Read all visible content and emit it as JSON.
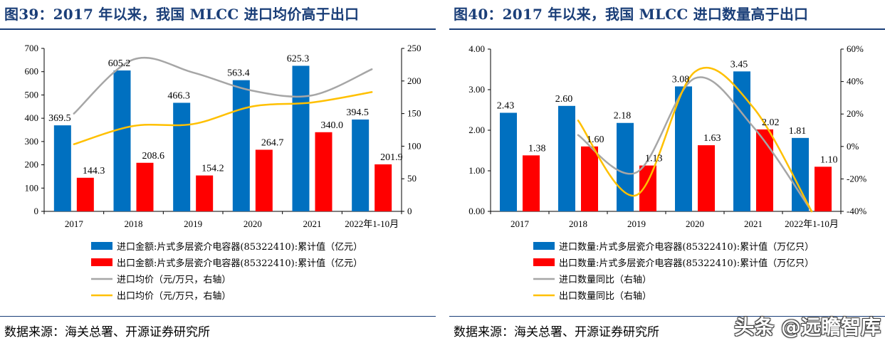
{
  "left": {
    "title": "图39：2017 年以来，我国 MLCC 进口均价高于出口",
    "source": "数据来源：海关总署、开源证券研究所",
    "chart_data": {
      "type": "bar",
      "categories": [
        "2017",
        "2018",
        "2019",
        "2020",
        "2021",
        "2022年1-10月"
      ],
      "y_left": {
        "ticks": [
          "0",
          "100",
          "200",
          "300",
          "400",
          "500",
          "600",
          "700"
        ],
        "lim": [
          0,
          700
        ]
      },
      "y_right": {
        "ticks": [
          "0",
          "50",
          "100",
          "150",
          "200",
          "250"
        ],
        "lim": [
          0,
          250
        ]
      },
      "series": [
        {
          "name": "进口金额:片式多层瓷介电容器(85322410):累计值（亿元）",
          "kind": "bar",
          "color": "#0070c0",
          "values": [
            369.5,
            605.2,
            466.3,
            563.4,
            625.3,
            394.5
          ],
          "labels": [
            "369.5",
            "605.2",
            "466.3",
            "563.4",
            "625.3",
            "394.5"
          ]
        },
        {
          "name": "出口金额:片式多层瓷介电容器(85322410):累计值（亿元）",
          "kind": "bar",
          "color": "#ff0000",
          "values": [
            144.3,
            208.6,
            154.2,
            264.7,
            340.0,
            201.9
          ],
          "labels": [
            "144.3",
            "208.6",
            "154.2",
            "264.7",
            "340.0",
            "201.9"
          ]
        },
        {
          "name": "进口均价（元/万只，右轴）",
          "kind": "line",
          "axis": "right",
          "color": "#a6a6a6",
          "values": [
            150,
            233,
            213,
            185,
            178,
            218
          ]
        },
        {
          "name": "出口均价（元/万只，右轴）",
          "kind": "line",
          "axis": "right",
          "color": "#ffc000",
          "values": [
            103,
            131,
            134,
            161,
            167,
            183
          ]
        }
      ]
    }
  },
  "right": {
    "title": "图40：2017 年以来，我国 MLCC 进口数量高于出口",
    "source": "数据来源：海关总署、开源证券研究所",
    "watermark": "头条 @远瞻智库",
    "chart_data": {
      "type": "bar",
      "categories": [
        "2017",
        "2018",
        "2019",
        "2020",
        "2021",
        "2022年1-10月"
      ],
      "y_left": {
        "ticks": [
          "0.00",
          "1.00",
          "2.00",
          "3.00",
          "4.00"
        ],
        "lim": [
          0,
          4
        ]
      },
      "y_right": {
        "ticks": [
          "-40%",
          "-20%",
          "0%",
          "20%",
          "40%",
          "60%"
        ],
        "lim": [
          -40,
          60
        ]
      },
      "series": [
        {
          "name": "进口数量:片式多层瓷介电容器(85322410):累计值（万亿只）",
          "kind": "bar",
          "color": "#0070c0",
          "values": [
            2.43,
            2.6,
            2.18,
            3.08,
            3.45,
            1.81
          ],
          "labels": [
            "2.43",
            "2.60",
            "2.18",
            "3.08",
            "3.45",
            "1.81"
          ]
        },
        {
          "name": "出口数量:片式多层瓷介电容器(85322410):累计值（万亿只）",
          "kind": "bar",
          "color": "#ff0000",
          "values": [
            1.38,
            1.6,
            1.13,
            1.63,
            2.02,
            1.1
          ],
          "labels": [
            "1.38",
            "1.60",
            "1.13",
            "1.63",
            "2.02",
            "1.10"
          ]
        },
        {
          "name": "进口数量同比（右轴）",
          "kind": "line",
          "axis": "right",
          "color": "#a6a6a6",
          "values": [
            null,
            7,
            -16,
            42,
            12,
            -40
          ]
        },
        {
          "name": "出口数量同比（右轴）",
          "kind": "line",
          "axis": "right",
          "color": "#ffc000",
          "values": [
            null,
            16,
            -30,
            46,
            24,
            -40
          ]
        }
      ]
    }
  }
}
